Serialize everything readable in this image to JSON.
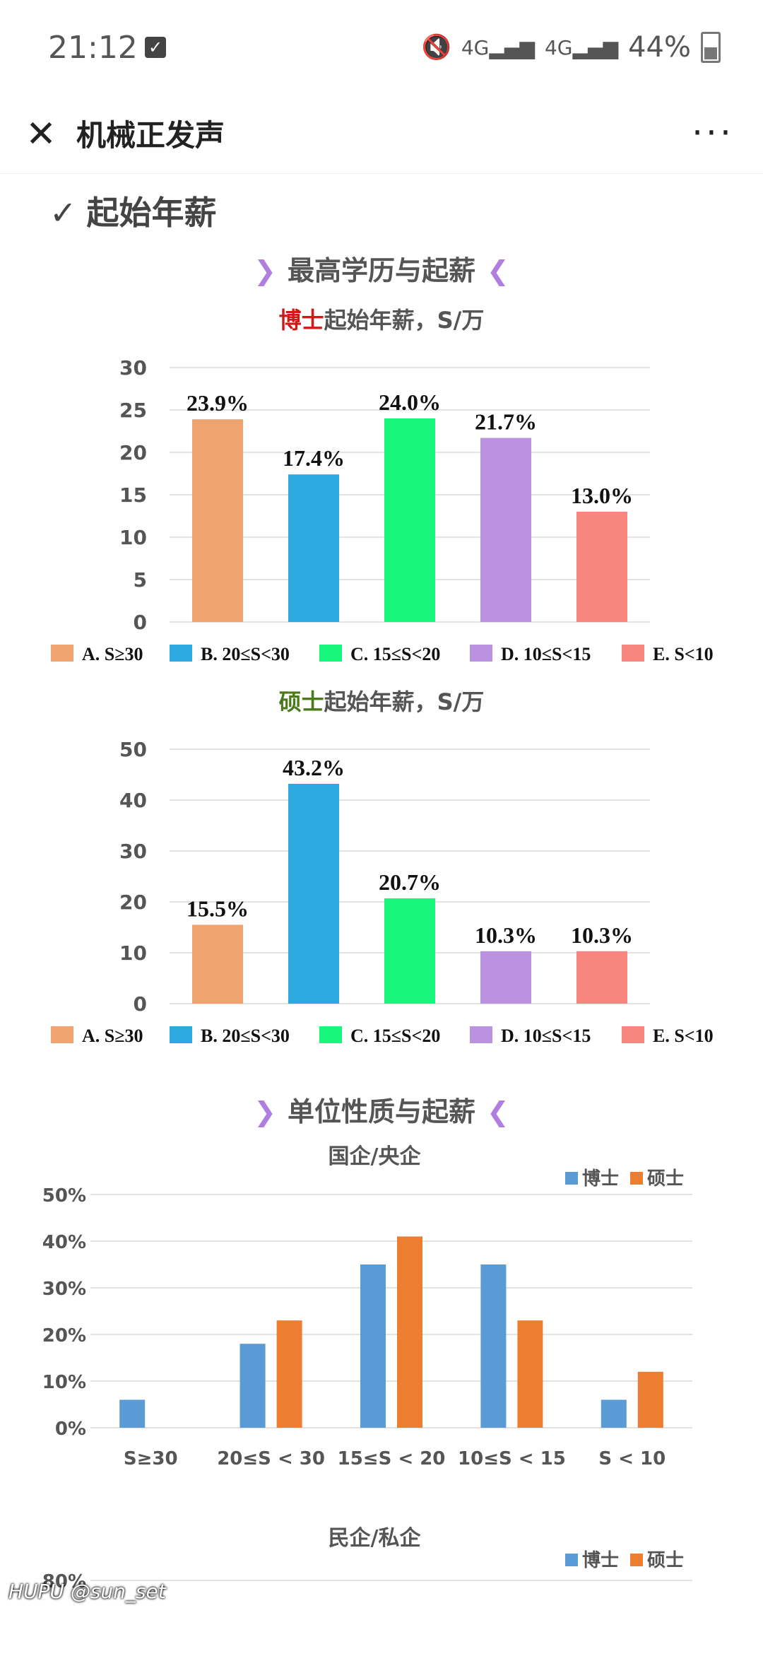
{
  "status_bar": {
    "time": "21:12",
    "network1": "4G",
    "network2": "4G",
    "battery": "44%"
  },
  "header": {
    "title": "机械正发声"
  },
  "section": {
    "heading": "起始年薪"
  },
  "subheading1": "最高学历与起薪",
  "subheading2": "单位性质与起薪",
  "legend_pct": [
    "A. S≥30",
    "B. 20≤S<30",
    "C. 15≤S<20",
    "D. 10≤S<15",
    "E. S<10"
  ],
  "colors": {
    "A": "#F0A36F",
    "B": "#2DA9DF",
    "C": "#17F57B",
    "D": "#BA92E0",
    "E": "#F6867F",
    "phd": "#5B9BD5",
    "master": "#ED7D31"
  },
  "chart_data": [
    {
      "type": "bar",
      "title_highlight": "博士",
      "title_rest": "起始年薪，S/万",
      "categories": [
        "A. S≥30",
        "B. 20≤S<30",
        "C. 15≤S<20",
        "D. 10≤S<15",
        "E. S<10"
      ],
      "values": [
        23.9,
        17.4,
        24.0,
        21.7,
        13.0
      ],
      "labels": [
        "23.9%",
        "17.4%",
        "24.0%",
        "21.7%",
        "13.0%"
      ],
      "ylim": [
        0,
        30
      ],
      "yticks": [
        "0",
        "5",
        "10",
        "15",
        "20",
        "25",
        "30"
      ],
      "legend": "bottom"
    },
    {
      "type": "bar",
      "title_highlight": "硕士",
      "title_rest": "起始年薪，S/万",
      "categories": [
        "A. S≥30",
        "B. 20≤S<30",
        "C. 15≤S<20",
        "D. 10≤S<15",
        "E. S<10"
      ],
      "values": [
        15.5,
        43.2,
        20.7,
        10.3,
        10.3
      ],
      "labels": [
        "15.5%",
        "43.2%",
        "20.7%",
        "10.3%",
        "10.3%"
      ],
      "ylim": [
        0,
        50
      ],
      "yticks": [
        "0",
        "10",
        "20",
        "30",
        "40",
        "50"
      ],
      "legend": "bottom"
    },
    {
      "type": "bar",
      "title": "国企/央企",
      "categories": [
        "S≥30",
        "20≤S < 30",
        "15≤S < 20",
        "10≤S < 15",
        "S < 10"
      ],
      "series": [
        {
          "name": "博士",
          "values": [
            6,
            18,
            35,
            35,
            6
          ]
        },
        {
          "name": "硕士",
          "values": [
            0,
            23,
            41,
            23,
            12
          ]
        }
      ],
      "ylim": [
        0,
        50
      ],
      "yticks": [
        "0%",
        "10%",
        "20%",
        "30%",
        "40%",
        "50%"
      ],
      "legend": "top-right"
    },
    {
      "type": "bar",
      "title": "民企/私企",
      "series": [
        {
          "name": "博士"
        },
        {
          "name": "硕士"
        }
      ],
      "yticks": [
        "80%"
      ],
      "legend": "top-right"
    }
  ],
  "watermark": "HUPU @sun_set"
}
